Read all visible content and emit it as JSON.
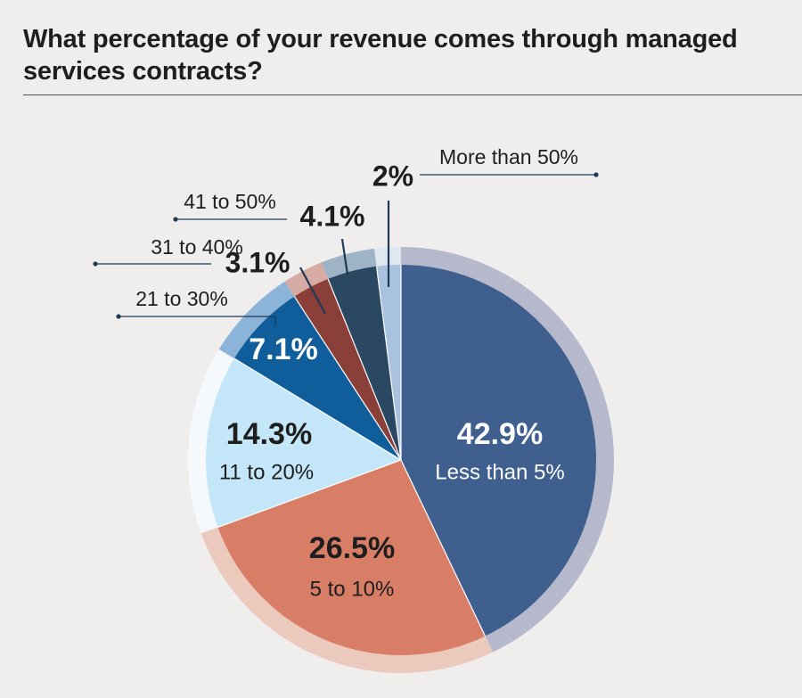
{
  "chart_data": {
    "type": "pie",
    "title": "What percentage of your revenue comes through managed services contracts?",
    "start": "12 o'clock, clockwise",
    "slices": [
      {
        "label": "Less than 5%",
        "value": 42.9,
        "value_label": "42.9%",
        "color": "#3f5f8e",
        "ring_color": "#b6b8cc",
        "label_style": "inside"
      },
      {
        "label": "5 to 10%",
        "value": 26.5,
        "value_label": "26.5%",
        "color": "#d97e66",
        "ring_color": "#ecc9bd",
        "label_style": "inside"
      },
      {
        "label": "11 to 20%",
        "value": 14.3,
        "value_label": "14.3%",
        "color": "#c3e6f8",
        "ring_color": "#f6f9fb",
        "label_style": "inside"
      },
      {
        "label": "21 to 30%",
        "value": 7.1,
        "value_label": "7.1%",
        "color": "#0f5e9b",
        "ring_color": "#8cb3d8",
        "label_style": "inside"
      },
      {
        "label": "31 to 40%",
        "value": 3.1,
        "value_label": "3.1%",
        "color": "#8a3f38",
        "ring_color": "#d6aba3",
        "label_style": "callout"
      },
      {
        "label": "41 to 50%",
        "value": 4.1,
        "value_label": "4.1%",
        "color": "#2b4863",
        "ring_color": "#9fb3c6",
        "label_style": "callout"
      },
      {
        "label": "More than 50%",
        "value": 2,
        "value_label": "2%",
        "color": "#a9c3de",
        "ring_color": "#dfe7f1",
        "label_style": "callout"
      }
    ]
  },
  "colors": {
    "background": "#efeeed",
    "text_dark": "#1e1e1e",
    "text_light": "#ffffff",
    "leader": "#1f3a57"
  }
}
